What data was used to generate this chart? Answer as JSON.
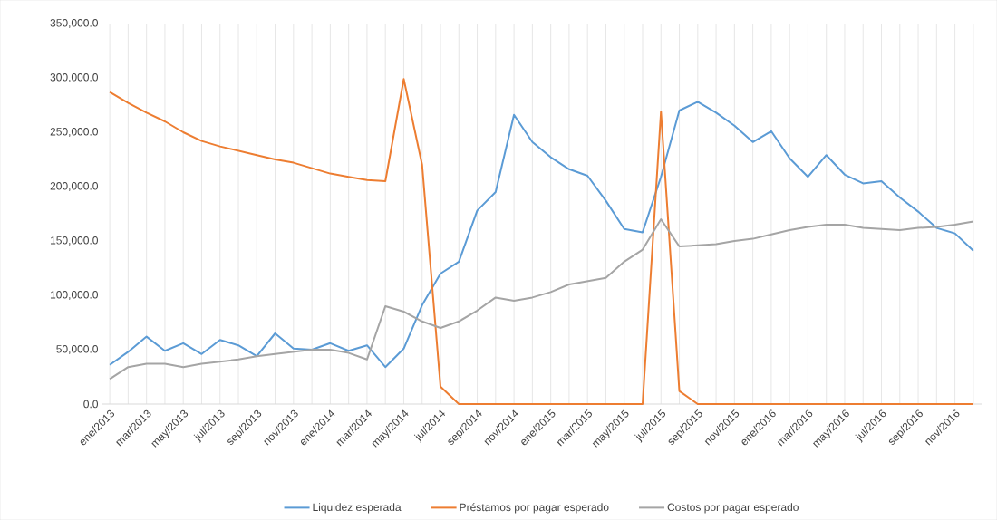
{
  "chart_data": {
    "type": "line",
    "categories": [
      "ene/2013",
      null,
      "mar/2013",
      null,
      "may/2013",
      null,
      "jul/2013",
      null,
      "sep/2013",
      null,
      "nov/2013",
      null,
      "ene/2014",
      null,
      "mar/2014",
      null,
      "may/2014",
      null,
      "jul/2014",
      null,
      "sep/2014",
      null,
      "nov/2014",
      null,
      "ene/2015",
      null,
      "mar/2015",
      null,
      "may/2015",
      null,
      "jul/2015",
      null,
      "sep/2015",
      null,
      "nov/2015",
      null,
      "ene/2016",
      null,
      "mar/2016",
      null,
      "may/2016",
      null,
      "jul/2016",
      null,
      "sep/2016",
      null,
      "nov/2016",
      null
    ],
    "series": [
      {
        "name": "Liquidez esperada",
        "color": "#5b9bd5",
        "values": [
          36000,
          48000,
          62000,
          49000,
          56000,
          46000,
          59000,
          54000,
          44000,
          65000,
          51000,
          50000,
          56000,
          49000,
          54000,
          34000,
          51000,
          91000,
          120000,
          131000,
          178000,
          195000,
          266000,
          241000,
          227000,
          216000,
          210000,
          187000,
          161000,
          158000,
          209000,
          270000,
          278000,
          268000,
          256000,
          241000,
          251000,
          226000,
          209000,
          229000,
          211000,
          203000,
          205000,
          190000,
          177000,
          162000,
          157000,
          141000
        ]
      },
      {
        "name": "Préstamos por pagar esperado",
        "color": "#ed7d31",
        "values": [
          287000,
          277000,
          268000,
          260000,
          250000,
          242000,
          237000,
          233000,
          229000,
          225000,
          222000,
          217000,
          212000,
          209000,
          206000,
          205000,
          299000,
          220000,
          16000,
          0,
          0,
          0,
          0,
          0,
          0,
          0,
          0,
          0,
          0,
          0,
          269000,
          12000,
          0,
          0,
          0,
          0,
          0,
          0,
          0,
          0,
          0,
          0,
          0,
          0,
          0,
          0,
          0,
          0
        ]
      },
      {
        "name": "Costos por pagar esperado",
        "color": "#a5a5a5",
        "values": [
          23000,
          34000,
          37000,
          37000,
          34000,
          37000,
          39000,
          41000,
          44000,
          46000,
          48000,
          50000,
          50000,
          47000,
          41000,
          90000,
          85000,
          76000,
          70000,
          76000,
          86000,
          98000,
          95000,
          98000,
          103000,
          110000,
          113000,
          116000,
          131000,
          142000,
          170000,
          145000,
          146000,
          147000,
          150000,
          152000,
          156000,
          160000,
          163000,
          165000,
          165000,
          162000,
          161000,
          160000,
          162000,
          163000,
          165000,
          168000
        ]
      }
    ],
    "ylim": [
      0,
      350000
    ],
    "yticks": [
      {
        "value": 0,
        "label": "0.0"
      },
      {
        "value": 50000,
        "label": "50,000.0"
      },
      {
        "value": 100000,
        "label": "100,000.0"
      },
      {
        "value": 150000,
        "label": "150,000.0"
      },
      {
        "value": 200000,
        "label": "200,000.0"
      },
      {
        "value": 250000,
        "label": "250,000.0"
      },
      {
        "value": 300000,
        "label": "300,000.0"
      },
      {
        "value": 350000,
        "label": "350,000.0"
      }
    ],
    "grid": "x",
    "legend": "bottom",
    "marker": "none",
    "line_style": "solid"
  }
}
